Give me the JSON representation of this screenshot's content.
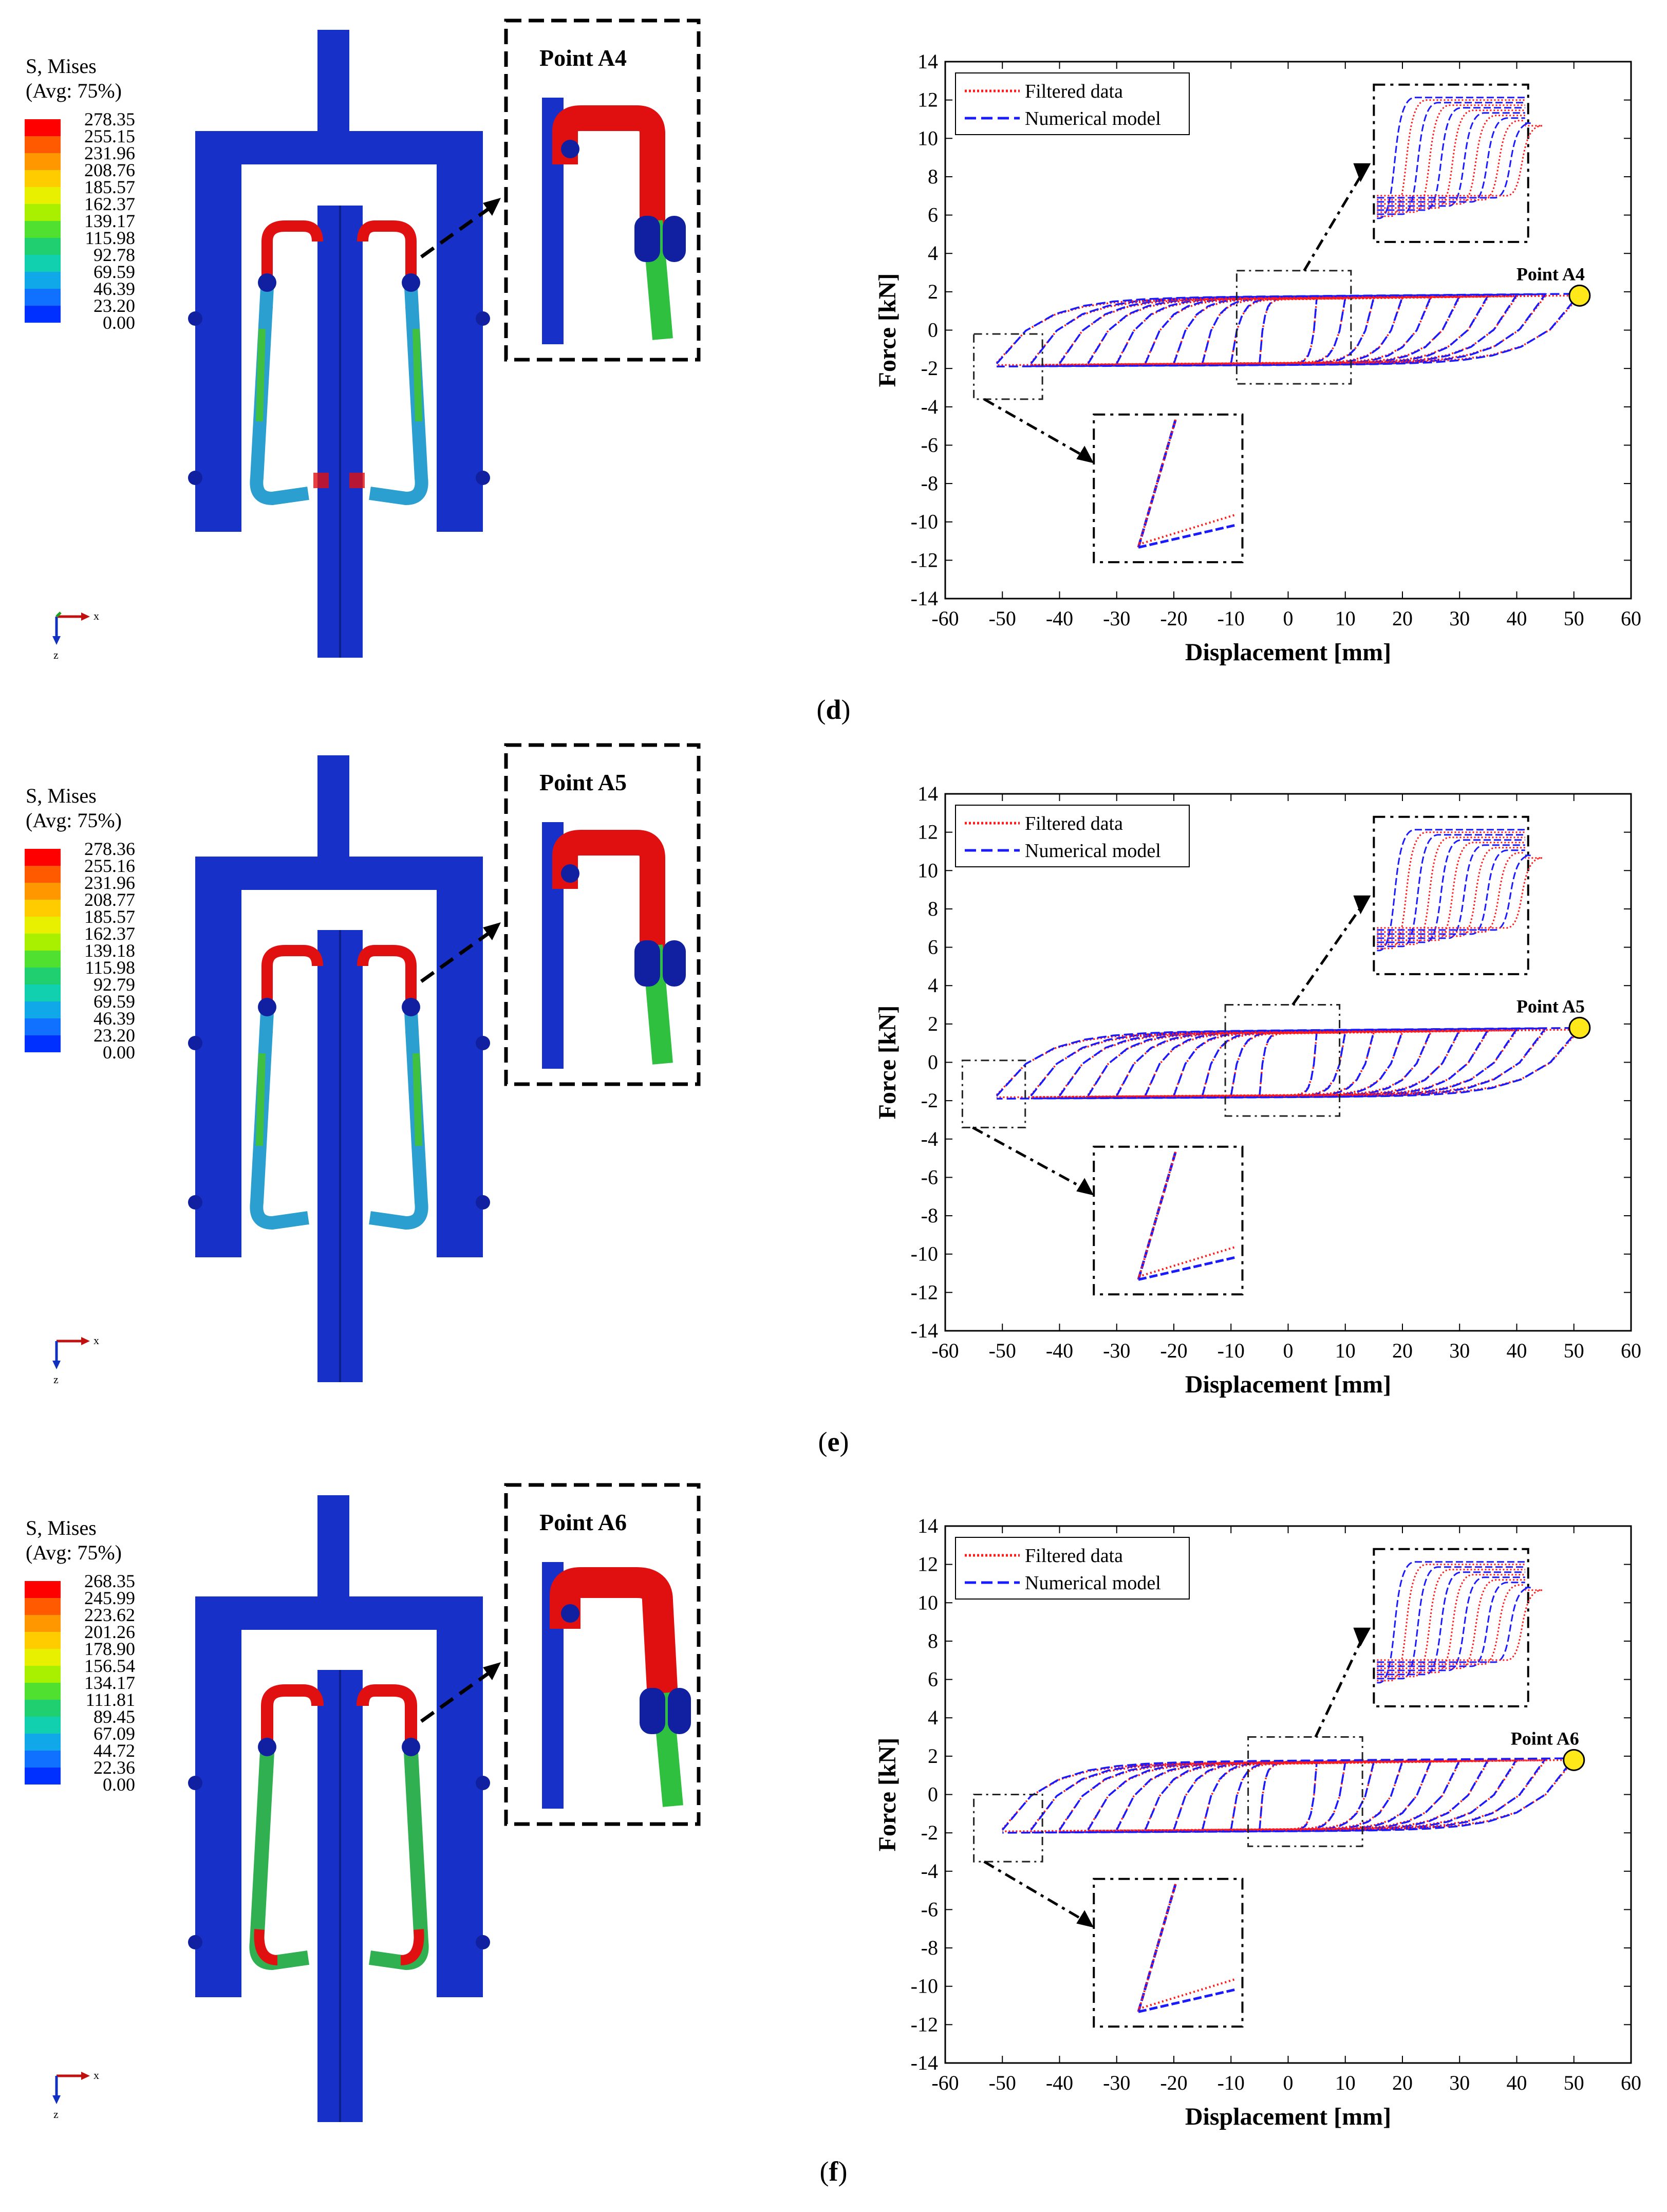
{
  "colors": {
    "filtered": "#ff1a1a",
    "numerical": "#1a1aff",
    "marker": "#ffe81a",
    "structure": "#1730c8",
    "hot": "#e01010",
    "mid": "#30c040"
  },
  "legend": {
    "filtered": "Filtered data",
    "numerical": "Numerical model"
  },
  "axis": {
    "xlabel": "Displacement [mm]",
    "ylabel": "Force [kN]"
  },
  "triad": {
    "x": "x",
    "z": "z"
  },
  "panels": [
    {
      "caption_open": "(",
      "caption_letter": "d",
      "caption_close": ")",
      "point_label": "Point A4",
      "contour_title_1": "S, Mises",
      "contour_title_2": "(Avg: 75%)",
      "contour_values": [
        "278.35",
        "255.15",
        "231.96",
        "208.76",
        "185.57",
        "162.37",
        "139.17",
        "115.98",
        "92.78",
        "69.59",
        "46.39",
        "23.20",
        "0.00"
      ]
    },
    {
      "caption_open": "(",
      "caption_letter": "e",
      "caption_close": ")",
      "point_label": "Point A5",
      "contour_title_1": "S, Mises",
      "contour_title_2": "(Avg: 75%)",
      "contour_values": [
        "278.36",
        "255.16",
        "231.96",
        "208.77",
        "185.57",
        "162.37",
        "139.18",
        "115.98",
        "92.79",
        "69.59",
        "46.39",
        "23.20",
        "0.00"
      ]
    },
    {
      "caption_open": "(",
      "caption_letter": "f",
      "caption_close": ")",
      "point_label": "Point A6",
      "contour_title_1": "S, Mises",
      "contour_title_2": "(Avg: 75%)",
      "contour_values": [
        "268.35",
        "245.99",
        "223.62",
        "201.26",
        "178.90",
        "156.54",
        "134.17",
        "111.81",
        "89.45",
        "67.09",
        "44.72",
        "22.36",
        "0.00"
      ]
    }
  ],
  "chart_data": [
    {
      "type": "line",
      "panel": "d",
      "xlabel": "Displacement [mm]",
      "ylabel": "Force [kN]",
      "xlim": [
        -60,
        60
      ],
      "ylim": [
        -14,
        14
      ],
      "xticks": [
        -60,
        -50,
        -40,
        -30,
        -20,
        -10,
        0,
        10,
        20,
        30,
        40,
        50,
        60
      ],
      "yticks": [
        -14,
        -12,
        -10,
        -8,
        -6,
        -4,
        -2,
        0,
        2,
        4,
        6,
        8,
        10,
        12,
        14
      ],
      "legend": [
        "Filtered data",
        "Numerical model"
      ],
      "loop_amplitudes": [
        5,
        10,
        15,
        20,
        25,
        30,
        35,
        40,
        45,
        51
      ],
      "upper_force": 1.6,
      "lower_force": -1.7,
      "peak_force": 1.8,
      "min_force": -2.2,
      "point": {
        "label": "Point A4",
        "x": 51,
        "y": 1.8
      },
      "zoom_regions": [
        {
          "x": [
            -55,
            -43
          ],
          "y": [
            -3.6,
            -0.2
          ]
        },
        {
          "x": [
            -9,
            11
          ],
          "y": [
            -2.8,
            3.1
          ]
        }
      ]
    },
    {
      "type": "line",
      "panel": "e",
      "xlabel": "Displacement [mm]",
      "ylabel": "Force [kN]",
      "xlim": [
        -60,
        60
      ],
      "ylim": [
        -14,
        14
      ],
      "xticks": [
        -60,
        -50,
        -40,
        -30,
        -20,
        -10,
        0,
        10,
        20,
        30,
        40,
        50,
        60
      ],
      "yticks": [
        -14,
        -12,
        -10,
        -8,
        -6,
        -4,
        -2,
        0,
        2,
        4,
        6,
        8,
        10,
        12,
        14
      ],
      "legend": [
        "Filtered data",
        "Numerical model"
      ],
      "loop_amplitudes": [
        5,
        10,
        15,
        20,
        25,
        30,
        35,
        40,
        45,
        51
      ],
      "upper_force": 1.5,
      "lower_force": -1.7,
      "peak_force": 1.9,
      "min_force": -1.9,
      "point": {
        "label": "Point A5",
        "x": 51,
        "y": 1.8
      },
      "zoom_regions": [
        {
          "x": [
            -57,
            -46
          ],
          "y": [
            -3.4,
            0.1
          ]
        },
        {
          "x": [
            -11,
            9
          ],
          "y": [
            -2.8,
            3.0
          ]
        }
      ]
    },
    {
      "type": "line",
      "panel": "f",
      "xlabel": "Displacement [mm]",
      "ylabel": "Force [kN]",
      "xlim": [
        -60,
        60
      ],
      "ylim": [
        -14,
        14
      ],
      "xticks": [
        -60,
        -50,
        -40,
        -30,
        -20,
        -10,
        0,
        10,
        20,
        30,
        40,
        50,
        60
      ],
      "yticks": [
        -14,
        -12,
        -10,
        -8,
        -6,
        -4,
        -2,
        0,
        2,
        4,
        6,
        8,
        10,
        12,
        14
      ],
      "legend": [
        "Filtered data",
        "Numerical model"
      ],
      "loop_amplitudes": [
        5,
        10,
        15,
        20,
        25,
        30,
        35,
        40,
        45,
        50
      ],
      "upper_force": 1.6,
      "lower_force": -1.8,
      "peak_force": 1.8,
      "min_force": -1.9,
      "point": {
        "label": "Point A6",
        "x": 50,
        "y": 1.8
      },
      "zoom_regions": [
        {
          "x": [
            -55,
            -43
          ],
          "y": [
            -3.5,
            0.0
          ]
        },
        {
          "x": [
            -7,
            13
          ],
          "y": [
            -2.7,
            3.0
          ]
        }
      ]
    }
  ]
}
